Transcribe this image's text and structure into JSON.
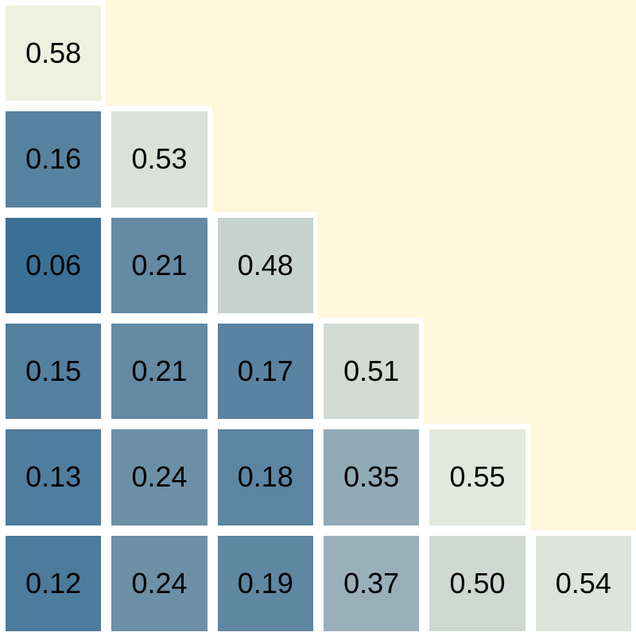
{
  "chart_data": {
    "type": "heatmap",
    "layout": "lower-triangular",
    "rows": 6,
    "cols": 6,
    "values": [
      [
        0.58
      ],
      [
        0.16,
        0.53
      ],
      [
        0.06,
        0.21,
        0.48
      ],
      [
        0.15,
        0.21,
        0.17,
        0.51
      ],
      [
        0.13,
        0.24,
        0.18,
        0.35,
        0.55
      ],
      [
        0.12,
        0.24,
        0.19,
        0.37,
        0.5,
        0.54
      ]
    ],
    "value_range": [
      0.0,
      0.6
    ],
    "colorscale": {
      "low": "#2b6690",
      "mid": "#7d9aad",
      "high": "#f6f7e4"
    },
    "upper_triangle_color": "#fff7dc",
    "grid_separator_color": "#ffffff",
    "cell_text_color": "#000000",
    "title": "",
    "xlabel": "",
    "ylabel": ""
  }
}
